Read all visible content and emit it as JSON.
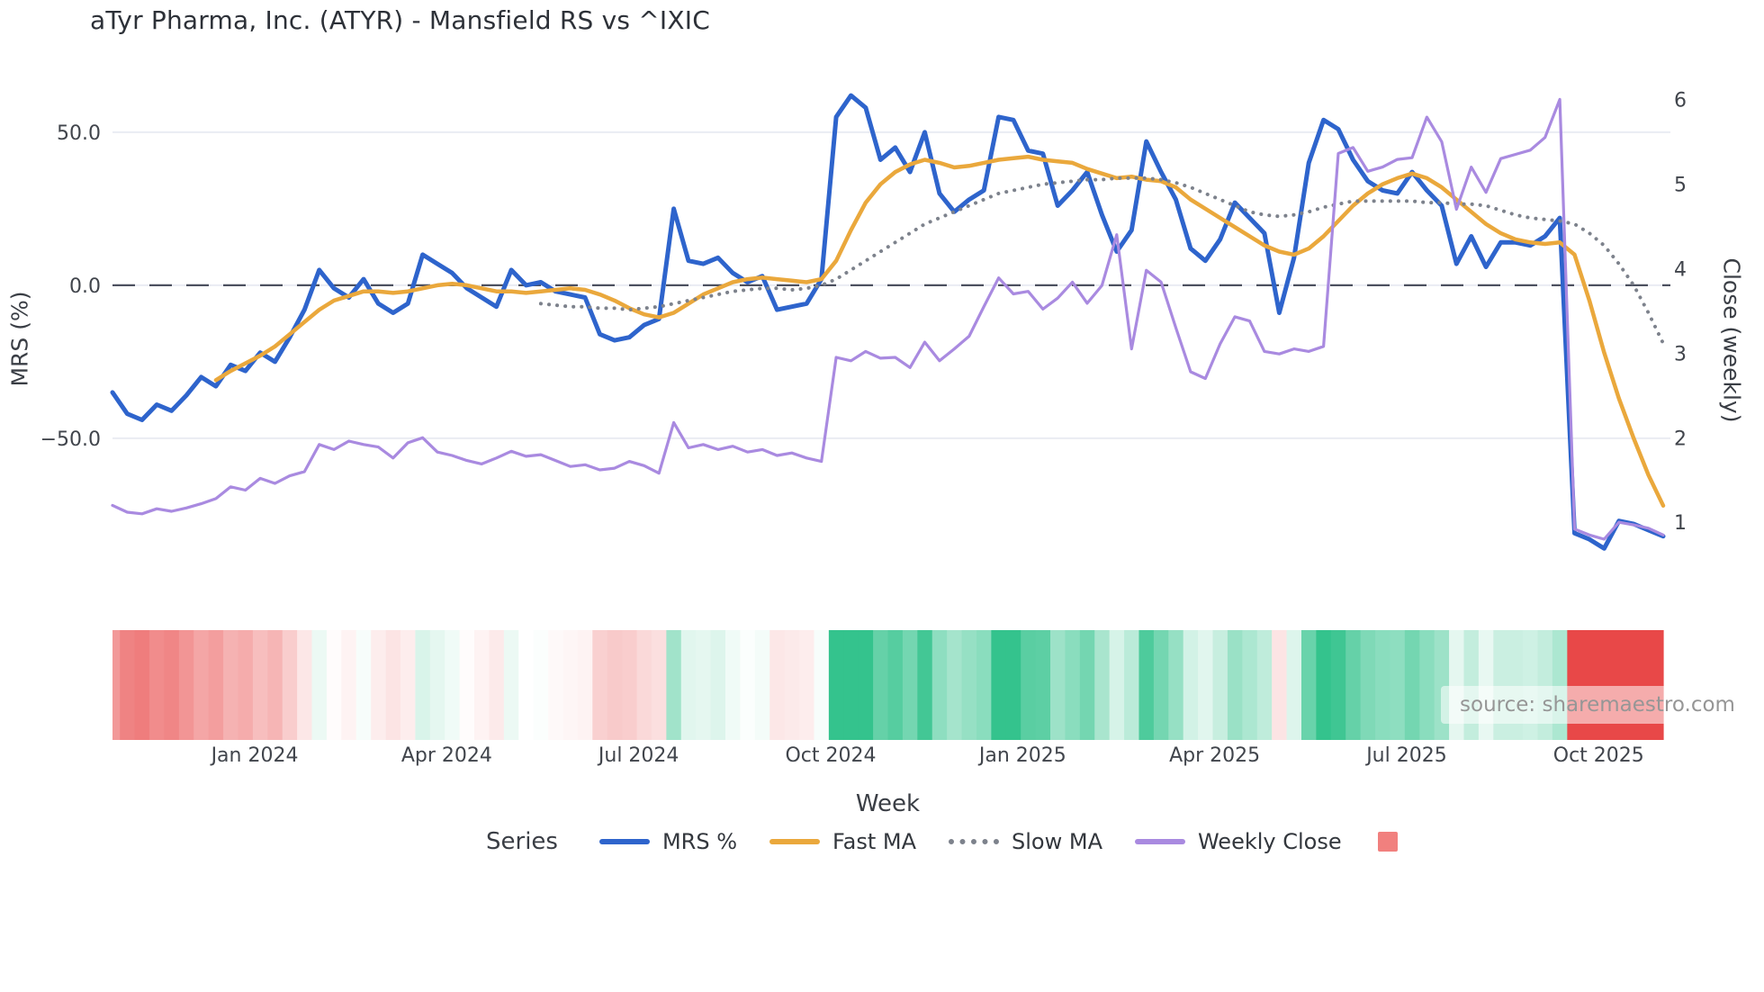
{
  "title": "aTyr Pharma, Inc. (ATYR) - Mansfield RS vs ^IXIC",
  "watermark": "source: sharemaestro.com",
  "legend": {
    "title": "Series",
    "heat_swatch_color": "#f1807e"
  },
  "colors": {
    "background": "#ffffff",
    "grid": "#eaecf3",
    "zero_line": "#4d5160",
    "title_text": "#2d3138",
    "axis_text": "#3a3e45",
    "tick_text": "#41454c",
    "watermark_text": "#969696"
  },
  "chart_data": {
    "type": "line",
    "title": "aTyr Pharma, Inc. (ATYR) - Mansfield RS vs ^IXIC",
    "x_label": "Week",
    "grid": "horizontal-only",
    "legend_position": "bottom",
    "x_ticks": {
      "weeks": [
        9.63,
        22.63,
        35.63,
        48.63,
        61.63,
        74.63,
        87.63,
        100.63
      ],
      "labels": [
        "Jan 2024",
        "Apr 2024",
        "Jul 2024",
        "Oct 2024",
        "Jan 2025",
        "Apr 2025",
        "Jul 2025",
        "Oct 2025"
      ]
    },
    "left_axis": {
      "label": "MRS (%)",
      "tick_values": [
        50,
        0,
        -50
      ],
      "tick_labels": [
        "50.0",
        "0.0",
        "−50.0"
      ],
      "range": [
        -101.5,
        68.2
      ],
      "zero_dashed_line": true
    },
    "right_axis": {
      "label": "Close (weekly)",
      "tick_values": [
        6,
        5,
        4,
        3,
        2,
        1
      ],
      "tick_labels": [
        "6",
        "5",
        "4",
        "3",
        "2",
        "1"
      ],
      "range": [
        0.13,
        6.27
      ]
    },
    "series": [
      {
        "name": "MRS %",
        "axis": "left",
        "color": "#2e64cc",
        "style": "solid",
        "width": 5,
        "start_week": 0,
        "values": [
          -35,
          -42,
          -44,
          -39,
          -41,
          -36,
          -30,
          -33,
          -26,
          -28,
          -22,
          -25,
          -17,
          -8,
          5,
          -1,
          -4,
          2,
          -6,
          -9,
          -6,
          10,
          7,
          4,
          -1,
          -4,
          -7,
          5,
          0,
          1,
          -2,
          -3,
          -4,
          -16,
          -18,
          -17,
          -13,
          -11,
          25,
          8,
          7,
          9,
          4,
          1,
          3,
          -8,
          -7,
          -6,
          2,
          55,
          62,
          58,
          41,
          45,
          37,
          50,
          30,
          24,
          28,
          31,
          55,
          54,
          44,
          43,
          26,
          31,
          37,
          23,
          11,
          18,
          47,
          37,
          28,
          12,
          8,
          15,
          27,
          22,
          17,
          -9,
          9,
          40,
          54,
          51,
          41,
          34,
          31,
          30,
          37,
          31,
          26,
          7,
          16,
          6,
          14,
          14,
          13,
          16,
          22,
          -81,
          -83,
          -86,
          -77,
          -78,
          -80,
          -82
        ]
      },
      {
        "name": "Fast MA",
        "axis": "left",
        "color": "#eaa83c",
        "style": "solid",
        "width": 4.5,
        "start_week": 7,
        "values": [
          -31,
          -28,
          -25.5,
          -23,
          -20,
          -16,
          -12,
          -8,
          -5,
          -3.5,
          -2,
          -2,
          -2.5,
          -2,
          -1,
          0,
          0.5,
          0,
          -1,
          -2,
          -2,
          -2.5,
          -2,
          -1.5,
          -1,
          -1.5,
          -3,
          -5,
          -7.5,
          -9.5,
          -10.5,
          -9,
          -6,
          -3,
          -1,
          1,
          2,
          2.5,
          2,
          1.5,
          1,
          2,
          8,
          18,
          27,
          33,
          37,
          39.5,
          41,
          40,
          38.5,
          39,
          40,
          41,
          41.5,
          42,
          41,
          40.5,
          40,
          38,
          36.5,
          35,
          35.5,
          34.5,
          34,
          32,
          28,
          25,
          22,
          19,
          16,
          13,
          11,
          10,
          12,
          16,
          21,
          26,
          30,
          33,
          35,
          36.5,
          35,
          32,
          28,
          24,
          20,
          17,
          15,
          14,
          13.5,
          14,
          10,
          -5,
          -22,
          -37,
          -50,
          -62,
          -72
        ]
      },
      {
        "name": "Slow MA",
        "axis": "left",
        "color": "#7d828c",
        "style": "dotted",
        "width": 4,
        "start_week": 29,
        "values": [
          -6,
          -6.5,
          -7,
          -7,
          -7.5,
          -7.5,
          -8,
          -7.5,
          -7,
          -6,
          -5,
          -4,
          -3,
          -2,
          -1.5,
          -1,
          -1,
          -1.5,
          -1,
          0,
          2,
          5,
          8,
          11,
          14,
          17,
          20,
          22,
          24,
          26,
          28,
          30,
          31,
          32,
          33,
          33.5,
          34,
          34.5,
          34.5,
          35,
          35,
          35,
          34.5,
          33.5,
          32,
          30,
          28,
          26,
          24,
          23,
          22.5,
          23,
          24,
          25.5,
          26.5,
          27.5,
          27.5,
          27.5,
          27.5,
          27.5,
          27,
          27,
          26.5,
          26.5,
          26,
          24.5,
          23,
          22,
          21.5,
          21,
          20,
          17,
          13,
          7,
          0,
          -9,
          -19
        ]
      },
      {
        "name": "Weekly Close",
        "axis": "right",
        "color": "#a98ae0",
        "style": "solid",
        "width": 3.2,
        "start_week": 0,
        "values": [
          1.2,
          1.12,
          1.1,
          1.16,
          1.13,
          1.17,
          1.22,
          1.28,
          1.42,
          1.38,
          1.52,
          1.46,
          1.55,
          1.6,
          1.92,
          1.86,
          1.96,
          1.92,
          1.89,
          1.76,
          1.94,
          2.0,
          1.83,
          1.79,
          1.73,
          1.69,
          1.76,
          1.84,
          1.78,
          1.8,
          1.73,
          1.66,
          1.68,
          1.62,
          1.64,
          1.72,
          1.67,
          1.58,
          2.18,
          1.88,
          1.92,
          1.86,
          1.9,
          1.83,
          1.86,
          1.79,
          1.82,
          1.76,
          1.72,
          2.95,
          2.91,
          3.02,
          2.94,
          2.95,
          2.83,
          3.13,
          2.91,
          3.05,
          3.2,
          3.55,
          3.89,
          3.7,
          3.73,
          3.52,
          3.65,
          3.84,
          3.59,
          3.8,
          4.4,
          3.05,
          3.98,
          3.84,
          3.3,
          2.78,
          2.7,
          3.11,
          3.43,
          3.38,
          3.02,
          2.99,
          3.05,
          3.02,
          3.08,
          5.36,
          5.43,
          5.15,
          5.2,
          5.29,
          5.31,
          5.79,
          5.5,
          4.7,
          5.2,
          4.9,
          5.3,
          5.35,
          5.4,
          5.55,
          6.0,
          0.92,
          0.85,
          0.8,
          1.0,
          0.97,
          0.93,
          0.85
        ]
      }
    ],
    "heatmap": {
      "description": "weekly strip below plot, color-coded from MRS % values",
      "source_series": "MRS %",
      "positive_color": "#34c38e",
      "negative_color": "#e84848",
      "positive_full_scale": 54,
      "negative_full_scale": 62
    }
  }
}
